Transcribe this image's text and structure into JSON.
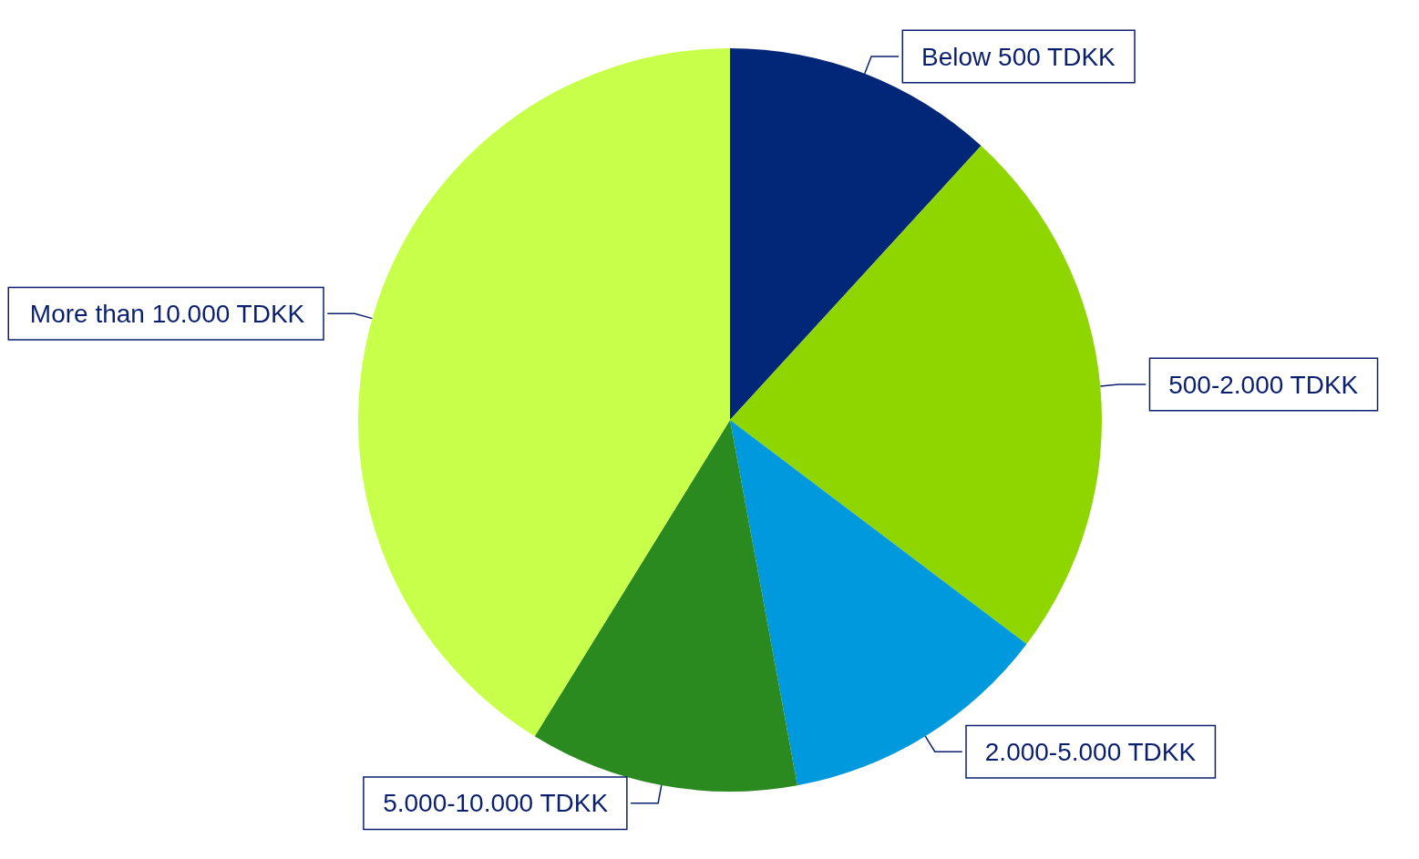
{
  "chart_data": {
    "type": "pie",
    "categories": [
      "Below 500 TDKK",
      "500-2.000 TDKK",
      "2.000-5.000 TDKK",
      "5.000-10.000 TDKK",
      "More than 10.000 TDKK"
    ],
    "values": [
      11.8,
      23.5,
      11.8,
      11.7,
      41.2
    ],
    "colors": [
      "#022678",
      "#8fd600",
      "#0099dd",
      "#2a8a1f",
      "#c8ff4b"
    ]
  }
}
